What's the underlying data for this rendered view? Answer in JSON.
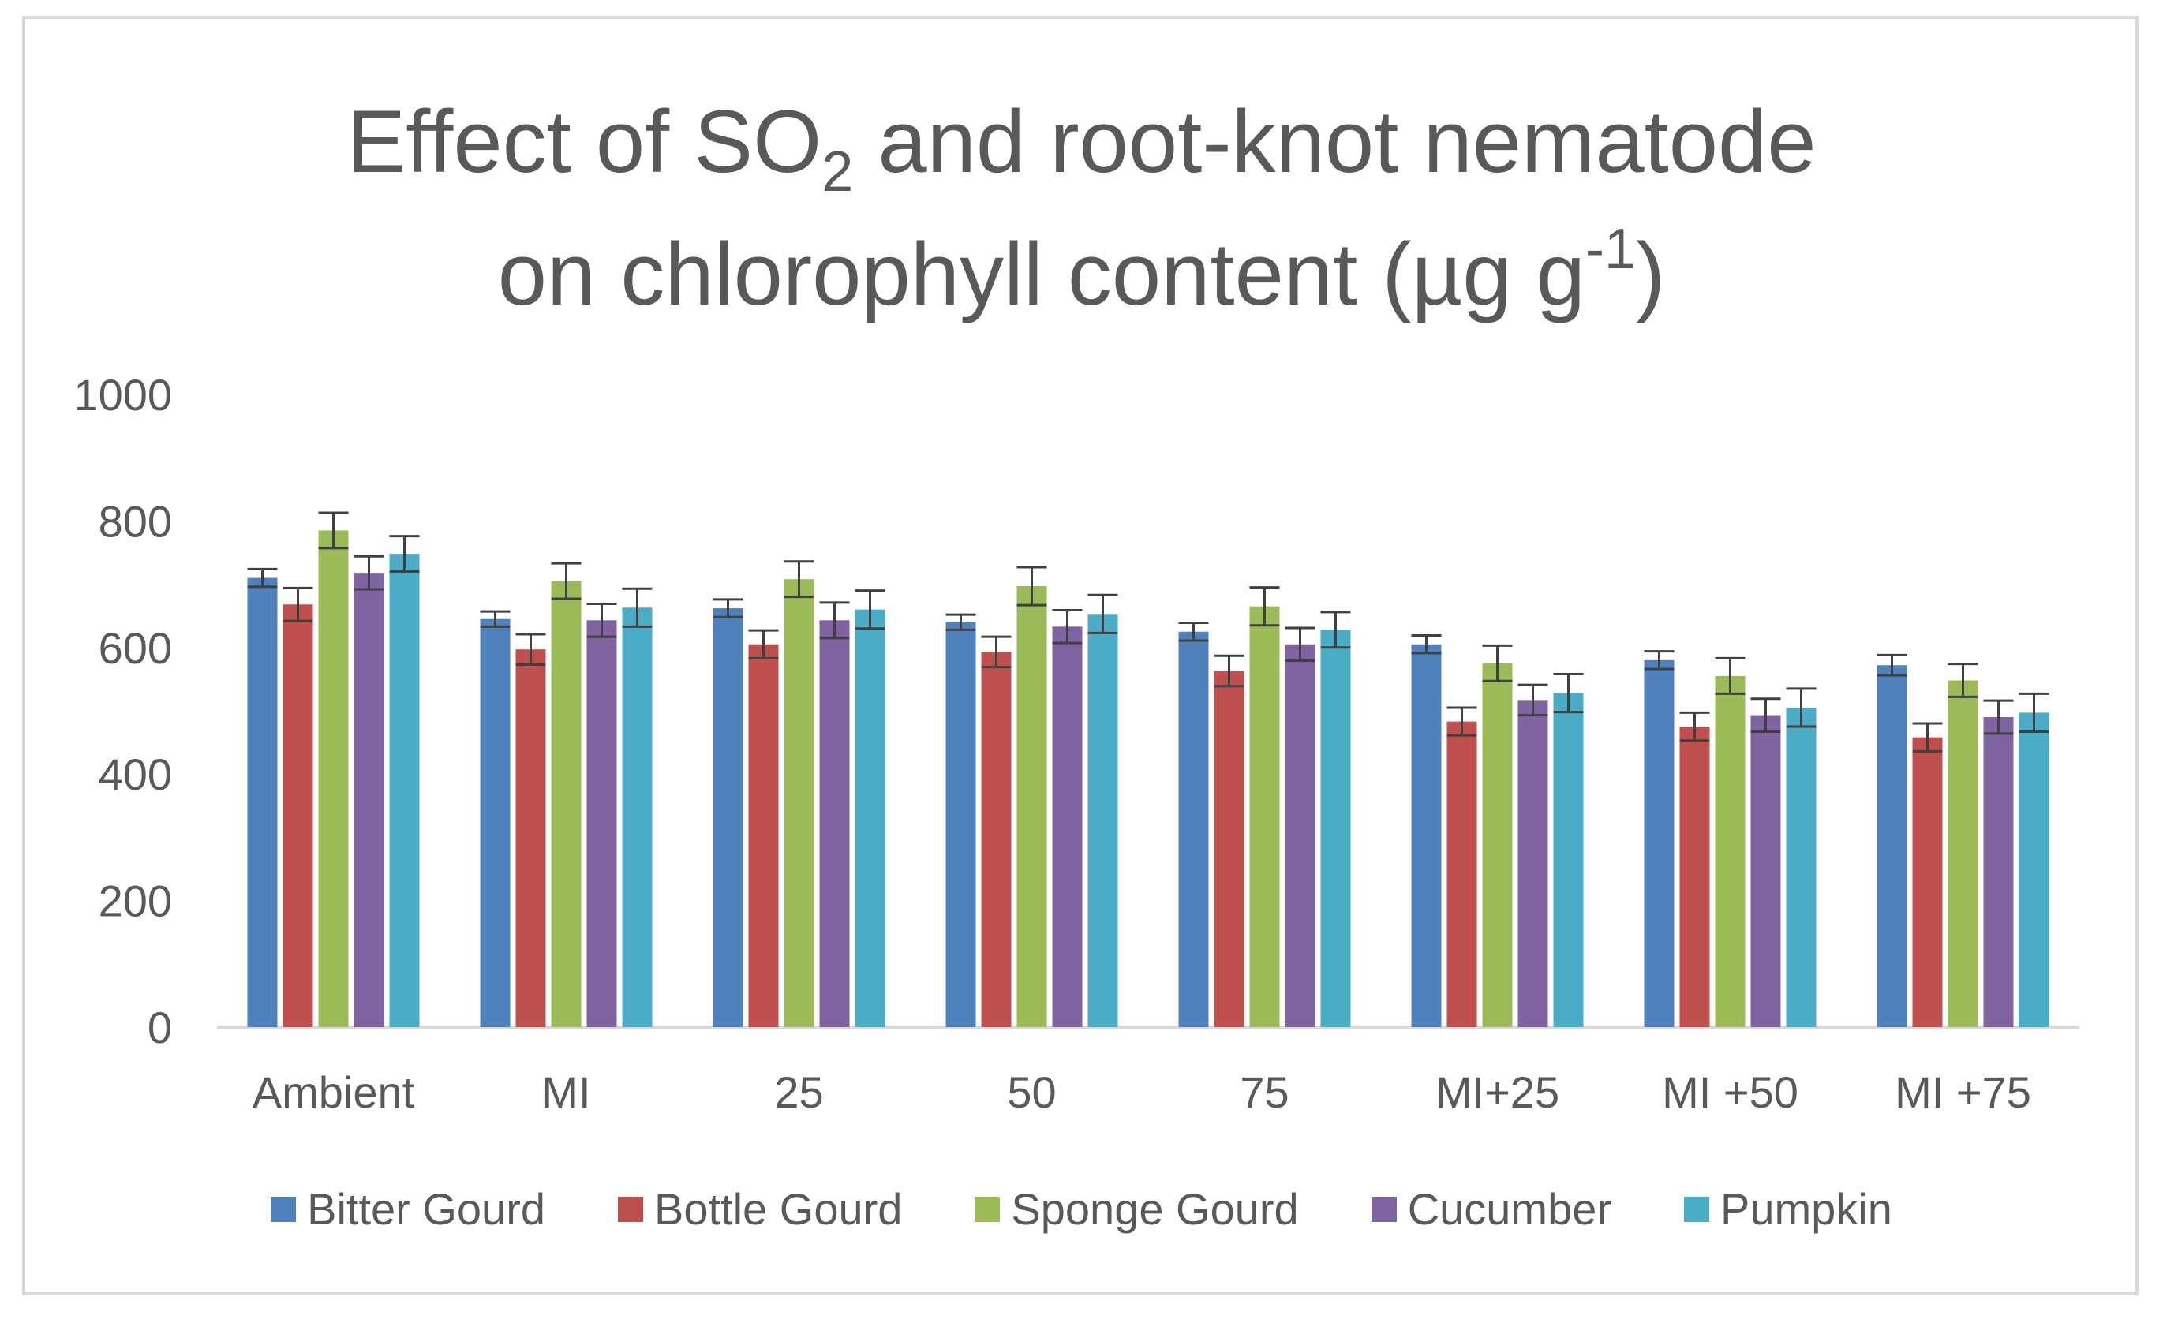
{
  "chart_data": {
    "type": "bar",
    "title_parts": {
      "line1_a": "Effect of SO",
      "line1_sub": "2",
      "line1_b": " and root-knot nematode",
      "line2_a": "on chlorophyll content (µg g",
      "line2_sup": "-1",
      "line2_b": ")"
    },
    "xlabel": "",
    "ylabel": "",
    "ylim": [
      0,
      1000
    ],
    "yticks": [
      "0",
      "200",
      "400",
      "600",
      "800",
      "1000"
    ],
    "categories": [
      "Ambient",
      "MI",
      "25",
      "50",
      "75",
      "MI+25",
      "MI +50",
      "MI +75"
    ],
    "series": [
      {
        "name": "Bitter Gourd",
        "color": "#4f81bd",
        "values": [
          710,
          645,
          662,
          640,
          625,
          605,
          580,
          572
        ],
        "errors": [
          14,
          12,
          14,
          12,
          14,
          14,
          14,
          16
        ]
      },
      {
        "name": "Bottle Gourd",
        "color": "#c0504d",
        "values": [
          668,
          597,
          605,
          593,
          563,
          483,
          475,
          458
        ],
        "errors": [
          26,
          24,
          22,
          24,
          24,
          22,
          22,
          22
        ]
      },
      {
        "name": "Sponge Gourd",
        "color": "#9bbb59",
        "values": [
          785,
          705,
          708,
          697,
          665,
          575,
          555,
          548
        ],
        "errors": [
          28,
          28,
          28,
          30,
          30,
          28,
          28,
          26
        ]
      },
      {
        "name": "Cucumber",
        "color": "#8064a2",
        "values": [
          718,
          643,
          643,
          633,
          605,
          517,
          493,
          490
        ],
        "errors": [
          26,
          26,
          28,
          26,
          26,
          24,
          26,
          26
        ]
      },
      {
        "name": "Pumpkin",
        "color": "#4bacc6",
        "values": [
          748,
          663,
          660,
          653,
          628,
          528,
          505,
          497
        ],
        "errors": [
          28,
          30,
          30,
          30,
          28,
          30,
          30,
          30
        ]
      }
    ]
  }
}
